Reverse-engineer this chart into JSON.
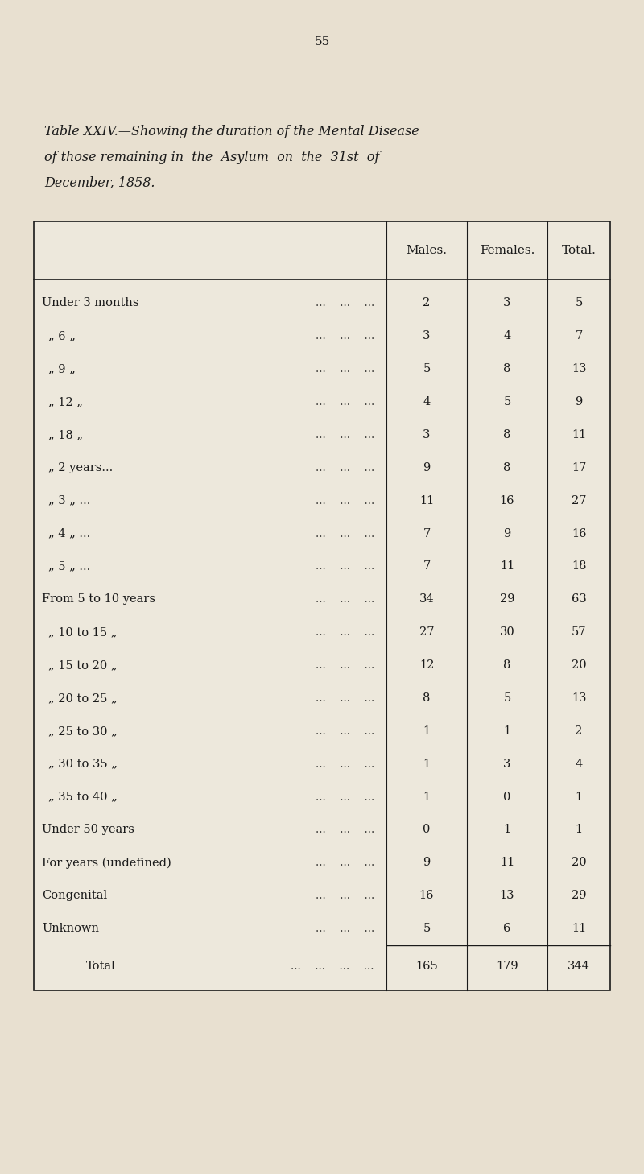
{
  "page_number": "55",
  "title_line1": "Table XXIV.—Showing the duration of the Mental Disease",
  "title_line2": "of those remaining in  the  Asylum  on  the  31st  of",
  "title_line3": "December, 1858.",
  "col_headers": [
    "Males.",
    "Females.",
    "Total."
  ],
  "rows": [
    {
      "label": "Under 3 months",
      "indent": 0,
      "dots": true,
      "males": "2",
      "females": "3",
      "total": "5"
    },
    {
      "label": "„’6’’6’’",
      "indent": 1,
      "dots": true,
      "males": "3",
      "females": "4",
      "total": "7"
    },
    {
      "label": "„’9’’",
      "indent": 1,
      "dots": true,
      "males": "5",
      "females": "8",
      "total": "13"
    },
    {
      "label": "„’12’’",
      "indent": 1,
      "dots": true,
      "males": "4",
      "females": "5",
      "total": "9"
    },
    {
      "label": "„’18’’",
      "indent": 1,
      "dots": true,
      "males": "3",
      "females": "8",
      "total": "11"
    },
    {
      "label": "„’2 years...",
      "indent": 1,
      "dots": true,
      "males": "9",
      "females": "8",
      "total": "17"
    },
    {
      "label": "„’3’’ ...",
      "indent": 1,
      "dots": true,
      "males": "11",
      "females": "16",
      "total": "27"
    },
    {
      "label": "„’4’’ ...",
      "indent": 1,
      "dots": true,
      "males": "7",
      "females": "9",
      "total": "16"
    },
    {
      "label": "„’5’’ ...",
      "indent": 1,
      "dots": true,
      "males": "7",
      "females": "11",
      "total": "18"
    },
    {
      "label": "From 5 to 10 years",
      "indent": 0,
      "dots": true,
      "males": "34",
      "females": "29",
      "total": "63"
    },
    {
      "label": "„ 10 to 15’’",
      "indent": 1,
      "dots": true,
      "males": "27",
      "females": "30",
      "total": "57"
    },
    {
      "label": "„ 15 to 20’’",
      "indent": 1,
      "dots": true,
      "males": "12",
      "females": "8",
      "total": "20"
    },
    {
      "label": "„ 20 to 25’’",
      "indent": 1,
      "dots": true,
      "males": "8",
      "females": "5",
      "total": "13"
    },
    {
      "label": "„ 25 to 30’’",
      "indent": 1,
      "dots": true,
      "males": "1",
      "females": "1",
      "total": "2"
    },
    {
      "label": "„ 30 to 35’’",
      "indent": 1,
      "dots": true,
      "males": "1",
      "females": "3",
      "total": "4"
    },
    {
      "label": "„ 35 to 40’’",
      "indent": 1,
      "dots": true,
      "males": "1",
      "females": "0",
      "total": "1"
    },
    {
      "label": "Under 50 years",
      "indent": 0,
      "dots": true,
      "males": "0",
      "females": "1",
      "total": "1"
    },
    {
      "label": "For years (undefined)",
      "indent": 0,
      "dots": true,
      "males": "9",
      "females": "11",
      "total": "20"
    },
    {
      "label": "Congenital",
      "indent": 0,
      "dots": true,
      "males": "16",
      "females": "13",
      "total": "29"
    },
    {
      "label": "Unknown",
      "indent": 0,
      "dots": true,
      "males": "5",
      "females": "6",
      "total": "11"
    }
  ],
  "total_row": {
    "label": "Total",
    "males": "165",
    "females": "179",
    "total": "344"
  },
  "bg_color": "#e8e0d0",
  "text_color": "#1a1a1a",
  "table_bg": "#ede8dc"
}
